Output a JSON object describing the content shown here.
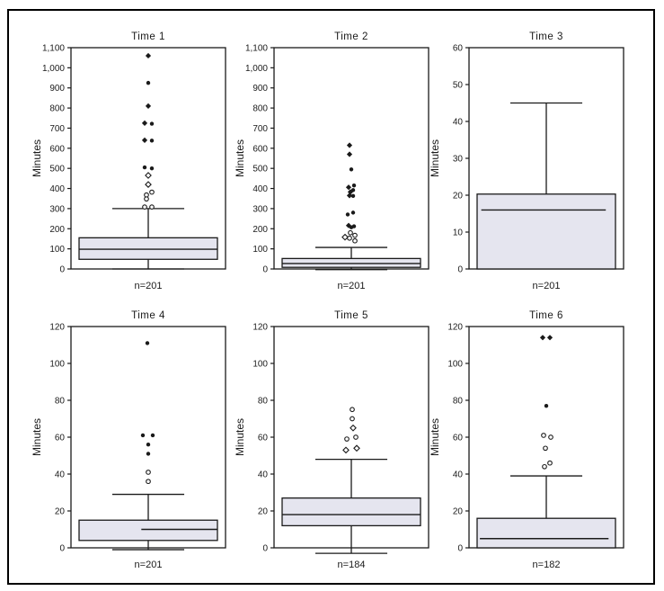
{
  "figure": {
    "background": "#ffffff",
    "frame_color": "#000000",
    "line_color": "#1a1a1a",
    "box_fill": "#e5e5ef",
    "grid": false,
    "legend": "none"
  },
  "chart_data": [
    {
      "type": "box",
      "title": "Time 1",
      "ylabel": "Minutes",
      "n_label": "n=201",
      "ylim": [
        0,
        1100
      ],
      "ytick_values": [
        0,
        100,
        200,
        300,
        400,
        500,
        600,
        700,
        800,
        900,
        1000,
        1100
      ],
      "ytick_labels": [
        "0",
        "100",
        "200",
        "300",
        "400",
        "500",
        "600",
        "700",
        "800",
        "900",
        "1,000",
        "1,100"
      ],
      "box": {
        "q1": 48,
        "median": 98,
        "q3": 155,
        "whisker_low": 0,
        "whisker_high": 300
      },
      "median_span": [
        0,
        1
      ],
      "outliers": [
        {
          "value": 1060,
          "symbol": "filled-diamond",
          "dx": 0
        },
        {
          "value": 925,
          "symbol": "filled-circle",
          "dx": 0
        },
        {
          "value": 810,
          "symbol": "filled-diamond",
          "dx": 0
        },
        {
          "value": 725,
          "symbol": "filled-diamond",
          "dx": -4
        },
        {
          "value": 722,
          "symbol": "filled-circle",
          "dx": 4
        },
        {
          "value": 640,
          "symbol": "filled-diamond",
          "dx": -4
        },
        {
          "value": 638,
          "symbol": "filled-circle",
          "dx": 4
        },
        {
          "value": 505,
          "symbol": "filled-circle",
          "dx": -4
        },
        {
          "value": 500,
          "symbol": "filled-circle",
          "dx": 4
        },
        {
          "value": 465,
          "symbol": "open-diamond",
          "dx": 0
        },
        {
          "value": 420,
          "symbol": "open-diamond",
          "dx": 0
        },
        {
          "value": 382,
          "symbol": "open-circle",
          "dx": 4
        },
        {
          "value": 368,
          "symbol": "open-circle",
          "dx": -2
        },
        {
          "value": 348,
          "symbol": "open-circle",
          "dx": -2
        },
        {
          "value": 308,
          "symbol": "open-circle",
          "dx": -4
        },
        {
          "value": 308,
          "symbol": "open-circle",
          "dx": 4
        }
      ]
    },
    {
      "type": "box",
      "title": "Time 2",
      "ylabel": "Minutes",
      "n_label": "n=201",
      "ylim": [
        0,
        1100
      ],
      "ytick_values": [
        0,
        100,
        200,
        300,
        400,
        500,
        600,
        700,
        800,
        900,
        1000,
        1100
      ],
      "ytick_labels": [
        "0",
        "100",
        "200",
        "300",
        "400",
        "500",
        "600",
        "700",
        "800",
        "900",
        "1,000",
        "1,100"
      ],
      "box": {
        "q1": 8,
        "median": 27,
        "q3": 52,
        "whisker_low": -3,
        "whisker_high": 107
      },
      "median_span": [
        0,
        1
      ],
      "outliers": [
        {
          "value": 615,
          "symbol": "filled-diamond",
          "dx": -2
        },
        {
          "value": 570,
          "symbol": "filled-diamond",
          "dx": -2
        },
        {
          "value": 495,
          "symbol": "filled-circle",
          "dx": 0
        },
        {
          "value": 415,
          "symbol": "filled-circle",
          "dx": 3
        },
        {
          "value": 406,
          "symbol": "filled-diamond",
          "dx": -3
        },
        {
          "value": 392,
          "symbol": "filled-circle",
          "dx": 2
        },
        {
          "value": 383,
          "symbol": "filled-diamond",
          "dx": -1
        },
        {
          "value": 365,
          "symbol": "filled-diamond",
          "dx": -2
        },
        {
          "value": 363,
          "symbol": "filled-circle",
          "dx": 2
        },
        {
          "value": 280,
          "symbol": "filled-circle",
          "dx": 2
        },
        {
          "value": 271,
          "symbol": "filled-circle",
          "dx": -4
        },
        {
          "value": 216,
          "symbol": "filled-diamond",
          "dx": -3
        },
        {
          "value": 212,
          "symbol": "filled-circle",
          "dx": 3
        },
        {
          "value": 207,
          "symbol": "filled-circle",
          "dx": 0
        },
        {
          "value": 180,
          "symbol": "open-circle",
          "dx": -1
        },
        {
          "value": 167,
          "symbol": "open-circle",
          "dx": 4
        },
        {
          "value": 158,
          "symbol": "open-diamond",
          "dx": -7
        },
        {
          "value": 153,
          "symbol": "open-circle",
          "dx": -2
        },
        {
          "value": 140,
          "symbol": "open-circle",
          "dx": 4
        }
      ]
    },
    {
      "type": "box",
      "title": "Time 3",
      "ylabel": "Minutes",
      "n_label": "n=201",
      "ylim": [
        0,
        60
      ],
      "ytick_values": [
        0,
        10,
        20,
        30,
        40,
        50,
        60
      ],
      "ytick_labels": [
        "0",
        "10",
        "20",
        "30",
        "40",
        "50",
        "60"
      ],
      "box": {
        "q1": 0,
        "median": 16,
        "q3": 20.3,
        "whisker_low": null,
        "whisker_high": 45
      },
      "median_span": [
        0.03,
        0.93
      ],
      "outliers": []
    },
    {
      "type": "box",
      "title": "Time 4",
      "ylabel": "Minutes",
      "n_label": "n=201",
      "ylim": [
        0,
        120
      ],
      "ytick_values": [
        0,
        20,
        40,
        60,
        80,
        100,
        120
      ],
      "ytick_labels": [
        "0",
        "20",
        "40",
        "60",
        "80",
        "100",
        "120"
      ],
      "box": {
        "q1": 4,
        "median": 10,
        "q3": 15,
        "whisker_low": -1,
        "whisker_high": 29
      },
      "median_span": [
        0.45,
        1
      ],
      "outliers": [
        {
          "value": 111,
          "symbol": "filled-circle",
          "dx": -1
        },
        {
          "value": 61,
          "symbol": "filled-circle",
          "dx": -6
        },
        {
          "value": 61,
          "symbol": "filled-circle",
          "dx": 5
        },
        {
          "value": 56,
          "symbol": "filled-circle",
          "dx": 0
        },
        {
          "value": 51,
          "symbol": "filled-circle",
          "dx": 0
        },
        {
          "value": 41,
          "symbol": "open-circle",
          "dx": 0
        },
        {
          "value": 36,
          "symbol": "open-circle",
          "dx": 0
        }
      ]
    },
    {
      "type": "box",
      "title": "Time 5",
      "ylabel": "Minutes",
      "n_label": "n=184",
      "ylim": [
        0,
        120
      ],
      "ytick_values": [
        0,
        20,
        40,
        60,
        80,
        100,
        120
      ],
      "ytick_labels": [
        "0",
        "20",
        "40",
        "60",
        "80",
        "100",
        "120"
      ],
      "box": {
        "q1": 12,
        "median": 18,
        "q3": 27,
        "whisker_low": -3,
        "whisker_high": 48
      },
      "median_span": [
        0,
        1
      ],
      "outliers": [
        {
          "value": 75,
          "symbol": "open-circle",
          "dx": 1
        },
        {
          "value": 70,
          "symbol": "open-circle",
          "dx": 1
        },
        {
          "value": 65,
          "symbol": "open-diamond",
          "dx": 2
        },
        {
          "value": 59,
          "symbol": "open-circle",
          "dx": -5
        },
        {
          "value": 60,
          "symbol": "open-circle",
          "dx": 5
        },
        {
          "value": 53,
          "symbol": "open-diamond",
          "dx": -6
        },
        {
          "value": 54,
          "symbol": "open-diamond",
          "dx": 6
        }
      ]
    },
    {
      "type": "box",
      "title": "Time 6",
      "ylabel": "Minutes",
      "n_label": "n=182",
      "ylim": [
        0,
        120
      ],
      "ytick_values": [
        0,
        20,
        40,
        60,
        80,
        100,
        120
      ],
      "ytick_labels": [
        "0",
        "20",
        "40",
        "60",
        "80",
        "100",
        "120"
      ],
      "box": {
        "q1": 0,
        "median": 5,
        "q3": 16,
        "whisker_low": null,
        "whisker_high": 39
      },
      "median_span": [
        0.02,
        0.95
      ],
      "outliers": [
        {
          "value": 114,
          "symbol": "filled-diamond",
          "dx": -4
        },
        {
          "value": 114,
          "symbol": "filled-diamond",
          "dx": 4
        },
        {
          "value": 77,
          "symbol": "filled-circle",
          "dx": 0
        },
        {
          "value": 61,
          "symbol": "open-circle",
          "dx": -3
        },
        {
          "value": 60,
          "symbol": "open-circle",
          "dx": 5
        },
        {
          "value": 54,
          "symbol": "open-circle",
          "dx": -1
        },
        {
          "value": 46,
          "symbol": "open-circle",
          "dx": 4
        },
        {
          "value": 44,
          "symbol": "open-circle",
          "dx": -2
        }
      ]
    }
  ]
}
